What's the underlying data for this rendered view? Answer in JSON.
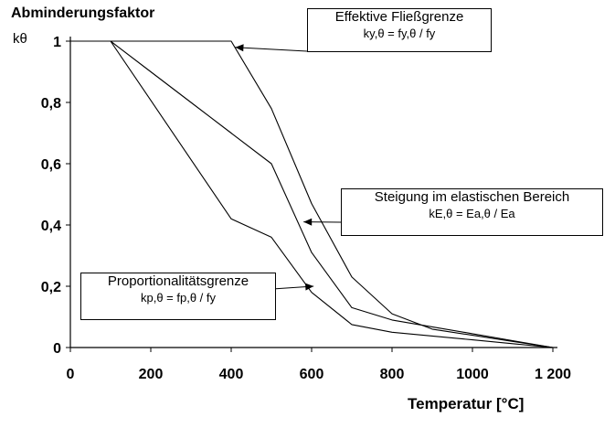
{
  "chart_data": {
    "type": "line",
    "ylabel": "Abminderungsfaktor",
    "ylabel_sub": "kθ",
    "xlabel": "Temperatur [°C]",
    "xlim": [
      0,
      1200
    ],
    "ylim": [
      0,
      1
    ],
    "x_ticks": [
      "0",
      "200",
      "400",
      "600",
      "800",
      "1000",
      "1 200"
    ],
    "y_ticks": [
      "0",
      "0,2",
      "0,4",
      "0,6",
      "0,8",
      "1"
    ],
    "grid": false,
    "series": [
      {
        "name": "Effektive Fließgrenze",
        "formula": "ky,θ = fy,θ / fy",
        "x": [
          0,
          400,
          500,
          600,
          700,
          800,
          900,
          1000,
          1100,
          1200
        ],
        "y": [
          1.0,
          1.0,
          0.78,
          0.47,
          0.23,
          0.11,
          0.06,
          0.04,
          0.02,
          0.0
        ]
      },
      {
        "name": "Steigung im elastischen Bereich",
        "formula": "kE,θ = Ea,θ / Ea",
        "x": [
          0,
          100,
          200,
          300,
          400,
          500,
          600,
          700,
          800,
          900,
          1000,
          1100,
          1200
        ],
        "y": [
          1.0,
          1.0,
          0.9,
          0.8,
          0.7,
          0.6,
          0.31,
          0.13,
          0.09,
          0.0675,
          0.045,
          0.0225,
          0.0
        ]
      },
      {
        "name": "Proportionalitätsgrenze",
        "formula": "kp,θ = fp,θ / fy",
        "x": [
          0,
          100,
          200,
          300,
          400,
          500,
          600,
          700,
          800,
          900,
          1000,
          1100,
          1200
        ],
        "y": [
          1.0,
          1.0,
          0.807,
          0.613,
          0.42,
          0.36,
          0.18,
          0.075,
          0.05,
          0.0375,
          0.025,
          0.0125,
          0.0
        ]
      }
    ],
    "annotations": [
      {
        "series": 0,
        "lines": [
          "Effektive Fließgrenze",
          "ky,θ = fy,θ / fy"
        ],
        "point": [
          410,
          0.98
        ]
      },
      {
        "series": 1,
        "lines": [
          "Steigung im elastischen Bereich",
          "kE,θ = Ea,θ / Ea"
        ],
        "point": [
          580,
          0.41
        ]
      },
      {
        "series": 2,
        "lines": [
          "Proportionalitätsgrenze",
          "kp,θ = fp,θ / fy"
        ],
        "point": [
          605,
          0.2
        ]
      }
    ]
  }
}
